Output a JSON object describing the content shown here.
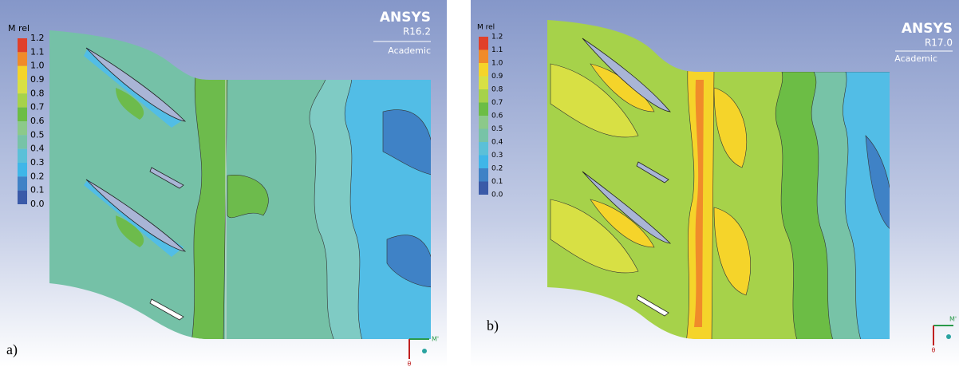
{
  "panels": [
    {
      "label": "a)",
      "logo": "ANSYS",
      "version": "R16.2",
      "edition": "Academic",
      "legend": {
        "title": "M rel",
        "ticks": [
          "1.2",
          "1.1",
          "1.0",
          "0.9",
          "0.8",
          "0.7",
          "0.6",
          "0.5",
          "0.4",
          "0.3",
          "0.2",
          "0.1",
          "0.0"
        ]
      },
      "axes": {
        "x": "M'",
        "y": "θ"
      }
    },
    {
      "label": "b)",
      "logo": "ANSYS",
      "version": "R17.0",
      "edition": "Academic",
      "legend": {
        "title": "M rel",
        "ticks": [
          "1.2",
          "1.1",
          "1.0",
          "0.9",
          "0.8",
          "0.7",
          "0.6",
          "0.5",
          "0.4",
          "0.3",
          "0.2",
          "0.1",
          "0.0"
        ]
      },
      "axes": {
        "x": "M'",
        "y": "θ"
      }
    }
  ]
}
